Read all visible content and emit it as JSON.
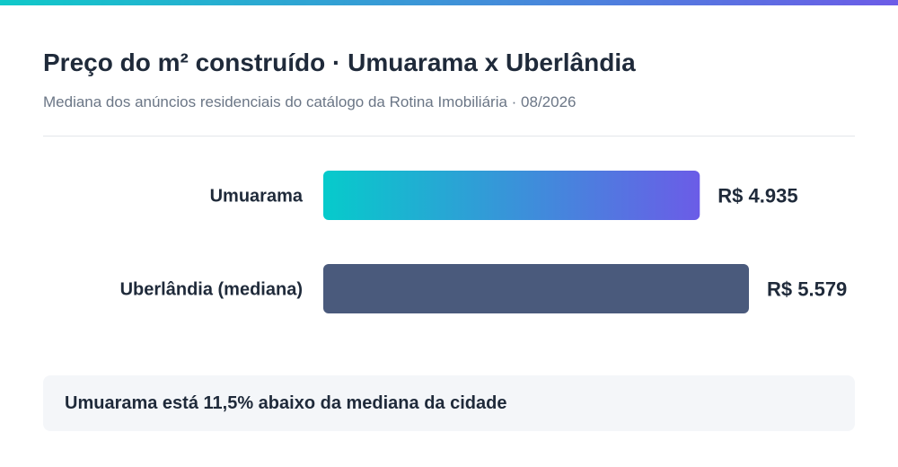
{
  "header": {
    "title": "Preço do m² construído · Umuarama x Uberlândia",
    "subtitle": "Mediana dos anúncios residenciais do catálogo da Rotina Imobiliária · 08/2026"
  },
  "colors": {
    "stripe_start": "#10c9c9",
    "stripe_end": "#6c5ce7",
    "highlight_bar_start": "#06cbcb",
    "highlight_bar_end": "#6b5ce7",
    "reference_bar": "#4a5a7c",
    "text_dark": "#1f2a3a",
    "text_muted": "#6b7686"
  },
  "chart_data": {
    "type": "bar",
    "orientation": "horizontal",
    "title": "Preço do m² construído · Umuarama x Uberlândia",
    "subtitle": "Mediana dos anúncios residenciais do catálogo da Rotina Imobiliária · 08/2026",
    "categories": [
      "Umuarama",
      "Uberlândia (mediana)"
    ],
    "values": [
      4935,
      5579
    ],
    "value_labels": [
      "R$ 4.935",
      "R$ 5.579"
    ],
    "unit": "R$",
    "xlim": [
      0,
      5579
    ],
    "grid": false,
    "legend": "none"
  },
  "note": {
    "text": "Umuarama está 11,5% abaixo da mediana da cidade"
  }
}
